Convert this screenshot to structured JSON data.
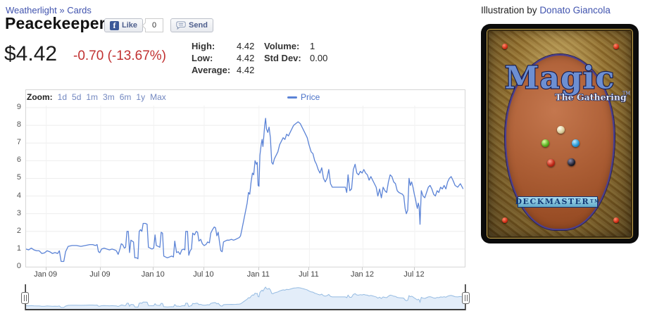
{
  "colors": {
    "link": "#4053ae",
    "range_link": "#7287c0",
    "legend_text": "#4a72c8",
    "series_line": "#5b83d6",
    "nav_line": "#95bbe2",
    "nav_fill": "#e3edf9",
    "grid": "#ededed",
    "plot_border": "#d6d6d6",
    "change_red": "#c13131"
  },
  "header": {
    "breadcrumb_set": "Weatherlight",
    "breadcrumb_sep": "»",
    "breadcrumb_section": "Cards",
    "title": "Peacekeeper"
  },
  "social": {
    "like_icon": "f",
    "like_label": "Like",
    "like_count": "0",
    "send_label": "Send"
  },
  "quote": {
    "price": "$4.42",
    "change": "-0.70 (-13.67%)",
    "stats_left": [
      {
        "label": "High:",
        "value": "4.42"
      },
      {
        "label": "Low:",
        "value": "4.42"
      },
      {
        "label": "Average:",
        "value": "4.42"
      }
    ],
    "stats_right": [
      {
        "label": "Volume:",
        "value": "1"
      },
      {
        "label": "Std Dev:",
        "value": "0.00"
      }
    ]
  },
  "chart_data": {
    "type": "line",
    "title": "",
    "zoom_label": "Zoom:",
    "ranges": [
      "1d",
      "5d",
      "1m",
      "3m",
      "6m",
      "1y",
      "Max"
    ],
    "legend": "Price",
    "ylim": [
      0,
      9
    ],
    "y_ticks": [
      0,
      1,
      2,
      3,
      4,
      5,
      6,
      7,
      8,
      9
    ],
    "x_ticks": [
      {
        "label": "Jan 09",
        "f": 0.046
      },
      {
        "label": "Jul 09",
        "f": 0.17
      },
      {
        "label": "Jan 10",
        "f": 0.291
      },
      {
        "label": "Jul 10",
        "f": 0.406
      },
      {
        "label": "Jan 11",
        "f": 0.531
      },
      {
        "label": "Jul 11",
        "f": 0.646
      },
      {
        "label": "Jan 12",
        "f": 0.768
      },
      {
        "label": "Jul 12",
        "f": 0.886
      }
    ],
    "series_name": "Price",
    "points": [
      [
        0.0,
        1.0
      ],
      [
        0.006,
        0.95
      ],
      [
        0.012,
        1.05
      ],
      [
        0.018,
        0.95
      ],
      [
        0.024,
        0.9
      ],
      [
        0.03,
        0.9
      ],
      [
        0.036,
        0.75
      ],
      [
        0.042,
        0.78
      ],
      [
        0.048,
        0.9
      ],
      [
        0.054,
        0.85
      ],
      [
        0.06,
        0.75
      ],
      [
        0.066,
        0.8
      ],
      [
        0.072,
        0.75
      ],
      [
        0.076,
        0.9
      ],
      [
        0.08,
        0.3
      ],
      [
        0.086,
        0.3
      ],
      [
        0.09,
        0.85
      ],
      [
        0.096,
        1.15
      ],
      [
        0.105,
        1.2
      ],
      [
        0.115,
        1.2
      ],
      [
        0.125,
        1.15
      ],
      [
        0.135,
        1.2
      ],
      [
        0.145,
        1.25
      ],
      [
        0.152,
        1.25
      ],
      [
        0.158,
        1.2
      ],
      [
        0.162,
        1.25
      ],
      [
        0.165,
        0.85
      ],
      [
        0.168,
        0.8
      ],
      [
        0.172,
        1.0
      ],
      [
        0.178,
        1.05
      ],
      [
        0.184,
        1.0
      ],
      [
        0.19,
        0.95
      ],
      [
        0.196,
        1.0
      ],
      [
        0.202,
        0.95
      ],
      [
        0.206,
        0.9
      ],
      [
        0.21,
        0.7
      ],
      [
        0.214,
        1.0
      ],
      [
        0.217,
        1.3
      ],
      [
        0.22,
        1.25
      ],
      [
        0.224,
        1.05
      ],
      [
        0.227,
        1.1
      ],
      [
        0.23,
        2.0
      ],
      [
        0.233,
        2.0
      ],
      [
        0.236,
        0.8
      ],
      [
        0.239,
        1.5
      ],
      [
        0.242,
        1.45
      ],
      [
        0.245,
        1.4
      ],
      [
        0.248,
        0.5
      ],
      [
        0.252,
        0.5
      ],
      [
        0.255,
        0.45
      ],
      [
        0.258,
        2.0
      ],
      [
        0.261,
        2.1
      ],
      [
        0.264,
        2.0
      ],
      [
        0.267,
        2.45
      ],
      [
        0.272,
        2.45
      ],
      [
        0.276,
        2.4
      ],
      [
        0.279,
        1.1
      ],
      [
        0.283,
        1.05
      ],
      [
        0.287,
        1.0
      ],
      [
        0.291,
        1.05
      ],
      [
        0.294,
        1.8
      ],
      [
        0.297,
        1.2
      ],
      [
        0.301,
        1.15
      ],
      [
        0.305,
        1.1
      ],
      [
        0.308,
        1.95
      ],
      [
        0.311,
        1.9
      ],
      [
        0.314,
        0.6
      ],
      [
        0.318,
        0.55
      ],
      [
        0.322,
        0.5
      ],
      [
        0.327,
        0.55
      ],
      [
        0.332,
        0.6
      ],
      [
        0.336,
        0.55
      ],
      [
        0.339,
        1.45
      ],
      [
        0.343,
        0.8
      ],
      [
        0.347,
        0.85
      ],
      [
        0.351,
        0.7
      ],
      [
        0.355,
        0.95
      ],
      [
        0.359,
        1.0
      ],
      [
        0.362,
        0.95
      ],
      [
        0.364,
        2.0
      ],
      [
        0.368,
        2.0
      ],
      [
        0.371,
        0.65
      ],
      [
        0.374,
        0.9
      ],
      [
        0.377,
        1.0
      ],
      [
        0.38,
        1.9
      ],
      [
        0.384,
        1.8
      ],
      [
        0.388,
        2.0
      ],
      [
        0.391,
        1.95
      ],
      [
        0.394,
        1.45
      ],
      [
        0.398,
        1.55
      ],
      [
        0.402,
        1.3
      ],
      [
        0.406,
        1.2
      ],
      [
        0.41,
        1.25
      ],
      [
        0.414,
        1.4
      ],
      [
        0.418,
        1.35
      ],
      [
        0.421,
        1.9
      ],
      [
        0.425,
        2.1
      ],
      [
        0.429,
        2.25
      ],
      [
        0.432,
        2.2
      ],
      [
        0.435,
        1.75
      ],
      [
        0.438,
        1.95
      ],
      [
        0.441,
        1.4
      ],
      [
        0.444,
        0.9
      ],
      [
        0.447,
        0.85
      ],
      [
        0.45,
        1.4
      ],
      [
        0.454,
        1.45
      ],
      [
        0.458,
        1.5
      ],
      [
        0.463,
        1.5
      ],
      [
        0.468,
        1.55
      ],
      [
        0.473,
        1.5
      ],
      [
        0.478,
        1.55
      ],
      [
        0.482,
        1.6
      ],
      [
        0.486,
        1.65
      ],
      [
        0.489,
        1.75
      ],
      [
        0.492,
        2.1
      ],
      [
        0.496,
        2.6
      ],
      [
        0.5,
        3.1
      ],
      [
        0.504,
        3.6
      ],
      [
        0.507,
        4.2
      ],
      [
        0.51,
        4.1
      ],
      [
        0.513,
        4.8
      ],
      [
        0.516,
        5.3
      ],
      [
        0.519,
        5.2
      ],
      [
        0.522,
        6.0
      ],
      [
        0.525,
        5.8
      ],
      [
        0.527,
        5.9
      ],
      [
        0.529,
        4.6
      ],
      [
        0.531,
        4.55
      ],
      [
        0.533,
        6.3
      ],
      [
        0.536,
        6.9
      ],
      [
        0.538,
        7.2
      ],
      [
        0.54,
        6.8
      ],
      [
        0.542,
        7.4
      ],
      [
        0.544,
        8.0
      ],
      [
        0.546,
        8.4
      ],
      [
        0.548,
        7.8
      ],
      [
        0.551,
        7.6
      ],
      [
        0.554,
        7.9
      ],
      [
        0.557,
        7.3
      ],
      [
        0.56,
        5.9
      ],
      [
        0.563,
        5.8
      ],
      [
        0.566,
        6.1
      ],
      [
        0.57,
        6.3
      ],
      [
        0.574,
        6.5
      ],
      [
        0.578,
        6.9
      ],
      [
        0.582,
        7.1
      ],
      [
        0.586,
        7.3
      ],
      [
        0.59,
        7.2
      ],
      [
        0.594,
        7.5
      ],
      [
        0.598,
        7.4
      ],
      [
        0.602,
        7.6
      ],
      [
        0.606,
        7.8
      ],
      [
        0.61,
        8.0
      ],
      [
        0.615,
        8.1
      ],
      [
        0.62,
        8.2
      ],
      [
        0.625,
        8.1
      ],
      [
        0.629,
        7.9
      ],
      [
        0.633,
        7.7
      ],
      [
        0.637,
        7.5
      ],
      [
        0.641,
        7.3
      ],
      [
        0.645,
        6.9
      ],
      [
        0.65,
        6.5
      ],
      [
        0.654,
        6.4
      ],
      [
        0.658,
        6.0
      ],
      [
        0.662,
        5.8
      ],
      [
        0.666,
        5.5
      ],
      [
        0.67,
        5.3
      ],
      [
        0.674,
        5.6
      ],
      [
        0.678,
        5.0
      ],
      [
        0.682,
        4.8
      ],
      [
        0.686,
        5.0
      ],
      [
        0.69,
        5.5
      ],
      [
        0.694,
        4.7
      ],
      [
        0.698,
        4.5
      ],
      [
        0.71,
        4.5
      ],
      [
        0.722,
        4.5
      ],
      [
        0.728,
        4.5
      ],
      [
        0.731,
        4.2
      ],
      [
        0.734,
        5.2
      ],
      [
        0.738,
        4.3
      ],
      [
        0.742,
        4.4
      ],
      [
        0.746,
        5.5
      ],
      [
        0.75,
        5.8
      ],
      [
        0.754,
        5.3
      ],
      [
        0.758,
        5.2
      ],
      [
        0.762,
        5.4
      ],
      [
        0.766,
        5.3
      ],
      [
        0.77,
        5.5
      ],
      [
        0.774,
        5.3
      ],
      [
        0.778,
        5.2
      ],
      [
        0.782,
        4.9
      ],
      [
        0.786,
        5.1
      ],
      [
        0.79,
        4.9
      ],
      [
        0.794,
        4.7
      ],
      [
        0.798,
        4.5
      ],
      [
        0.802,
        4.0
      ],
      [
        0.806,
        4.4
      ],
      [
        0.81,
        3.9
      ],
      [
        0.814,
        4.5
      ],
      [
        0.818,
        4.3
      ],
      [
        0.822,
        4.2
      ],
      [
        0.826,
        4.8
      ],
      [
        0.83,
        5.2
      ],
      [
        0.834,
        5.1
      ],
      [
        0.838,
        4.8
      ],
      [
        0.842,
        4.7
      ],
      [
        0.846,
        4.3
      ],
      [
        0.85,
        4.2
      ],
      [
        0.854,
        4.15
      ],
      [
        0.858,
        4.1
      ],
      [
        0.861,
        4.0
      ],
      [
        0.864,
        3.3
      ],
      [
        0.867,
        3.0
      ],
      [
        0.87,
        3.2
      ],
      [
        0.873,
        5.0
      ],
      [
        0.876,
        4.6
      ],
      [
        0.879,
        4.8
      ],
      [
        0.882,
        4.5
      ],
      [
        0.885,
        4.1
      ],
      [
        0.888,
        3.8
      ],
      [
        0.89,
        3.5
      ],
      [
        0.892,
        3.3
      ],
      [
        0.894,
        3.6
      ],
      [
        0.896,
        3.4
      ],
      [
        0.898,
        2.4
      ],
      [
        0.901,
        4.3
      ],
      [
        0.905,
        4.0
      ],
      [
        0.909,
        3.9
      ],
      [
        0.913,
        4.2
      ],
      [
        0.917,
        4.5
      ],
      [
        0.921,
        4.6
      ],
      [
        0.925,
        4.4
      ],
      [
        0.929,
        4.1
      ],
      [
        0.933,
        4.0
      ],
      [
        0.937,
        4.3
      ],
      [
        0.941,
        4.2
      ],
      [
        0.945,
        4.5
      ],
      [
        0.949,
        4.4
      ],
      [
        0.953,
        4.6
      ],
      [
        0.957,
        4.4
      ],
      [
        0.961,
        4.8
      ],
      [
        0.965,
        5.0
      ],
      [
        0.969,
        5.1
      ],
      [
        0.973,
        4.9
      ],
      [
        0.978,
        4.6
      ],
      [
        0.984,
        4.5
      ],
      [
        0.99,
        4.7
      ],
      [
        0.996,
        4.42
      ]
    ]
  },
  "card": {
    "illustration_prefix": "Illustration by",
    "artist": "Donato Giancola",
    "logo": "Magic",
    "logo_sub": "The Gathering",
    "tm": "TM",
    "deckmaster": "DECKMASTER"
  }
}
